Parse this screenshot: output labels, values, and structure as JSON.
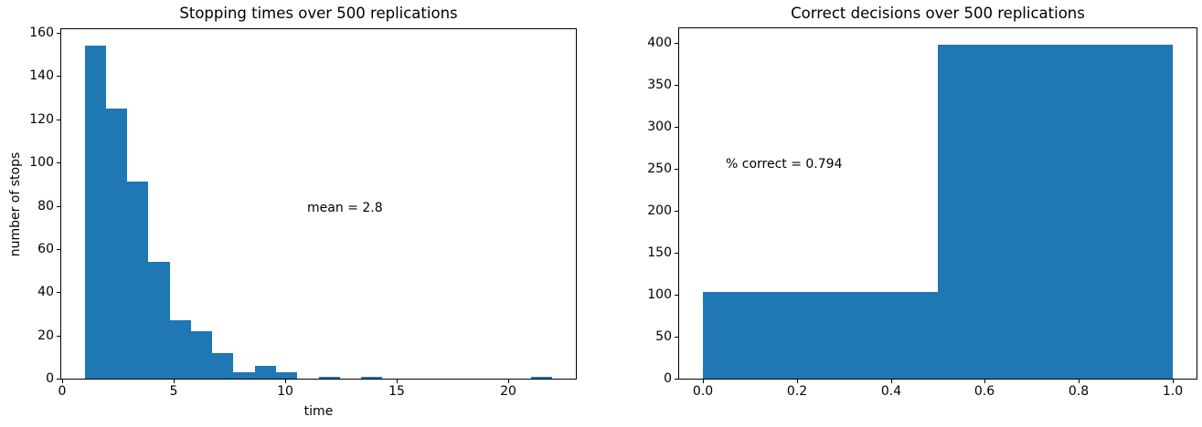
{
  "figure": {
    "background": "#ffffff",
    "text_color": "#000000"
  },
  "chart_data": [
    {
      "type": "bar",
      "subtype": "histogram",
      "title": "Stopping times over 500 replications",
      "xlabel": "time",
      "ylabel": "number of stops",
      "bar_color": "#1f77b4",
      "bin_edges": [
        1.0,
        1.9545,
        2.9091,
        3.8636,
        4.8182,
        5.7727,
        6.7273,
        7.6818,
        8.6364,
        9.5909,
        10.5455,
        11.5,
        12.4545,
        13.4091,
        14.3636,
        15.3182,
        16.2727,
        17.2273,
        18.1818,
        19.1364,
        20.0909,
        21.0455,
        22.0
      ],
      "counts": [
        154,
        125,
        91,
        54,
        27,
        22,
        12,
        3,
        6,
        3,
        0,
        1,
        0,
        1,
        0,
        0,
        0,
        0,
        0,
        0,
        0,
        1
      ],
      "total": 500,
      "xlim": [
        -0.05,
        23.05
      ],
      "ylim": [
        0,
        161.7
      ],
      "xticks": [
        0,
        5,
        10,
        15,
        20
      ],
      "xtick_labels": [
        "0",
        "5",
        "10",
        "15",
        "20"
      ],
      "yticks": [
        0,
        20,
        40,
        60,
        80,
        100,
        120,
        140,
        160
      ],
      "ytick_labels": [
        "0",
        "20",
        "40",
        "60",
        "80",
        "100",
        "120",
        "140",
        "160"
      ],
      "grid": false,
      "legend": null,
      "annotation": {
        "text": "mean = 2.8",
        "x": 11,
        "y": 77
      }
    },
    {
      "type": "bar",
      "subtype": "histogram",
      "title": "Correct decisions over 500 replications",
      "xlabel": "",
      "ylabel": "",
      "bar_color": "#1f77b4",
      "bin_edges": [
        0.0,
        0.5,
        1.0
      ],
      "counts": [
        103,
        397
      ],
      "total": 500,
      "xlim": [
        -0.05,
        1.05
      ],
      "ylim": [
        0,
        416.85
      ],
      "xticks": [
        0.0,
        0.2,
        0.4,
        0.6,
        0.8,
        1.0
      ],
      "xtick_labels": [
        "0.0",
        "0.2",
        "0.4",
        "0.6",
        "0.8",
        "1.0"
      ],
      "yticks": [
        0,
        50,
        100,
        150,
        200,
        250,
        300,
        350,
        400
      ],
      "ytick_labels": [
        "0",
        "50",
        "100",
        "150",
        "200",
        "250",
        "300",
        "350",
        "400"
      ],
      "grid": false,
      "legend": null,
      "annotation": {
        "text": "% correct = 0.794",
        "x": 0.05,
        "y": 250
      }
    }
  ]
}
